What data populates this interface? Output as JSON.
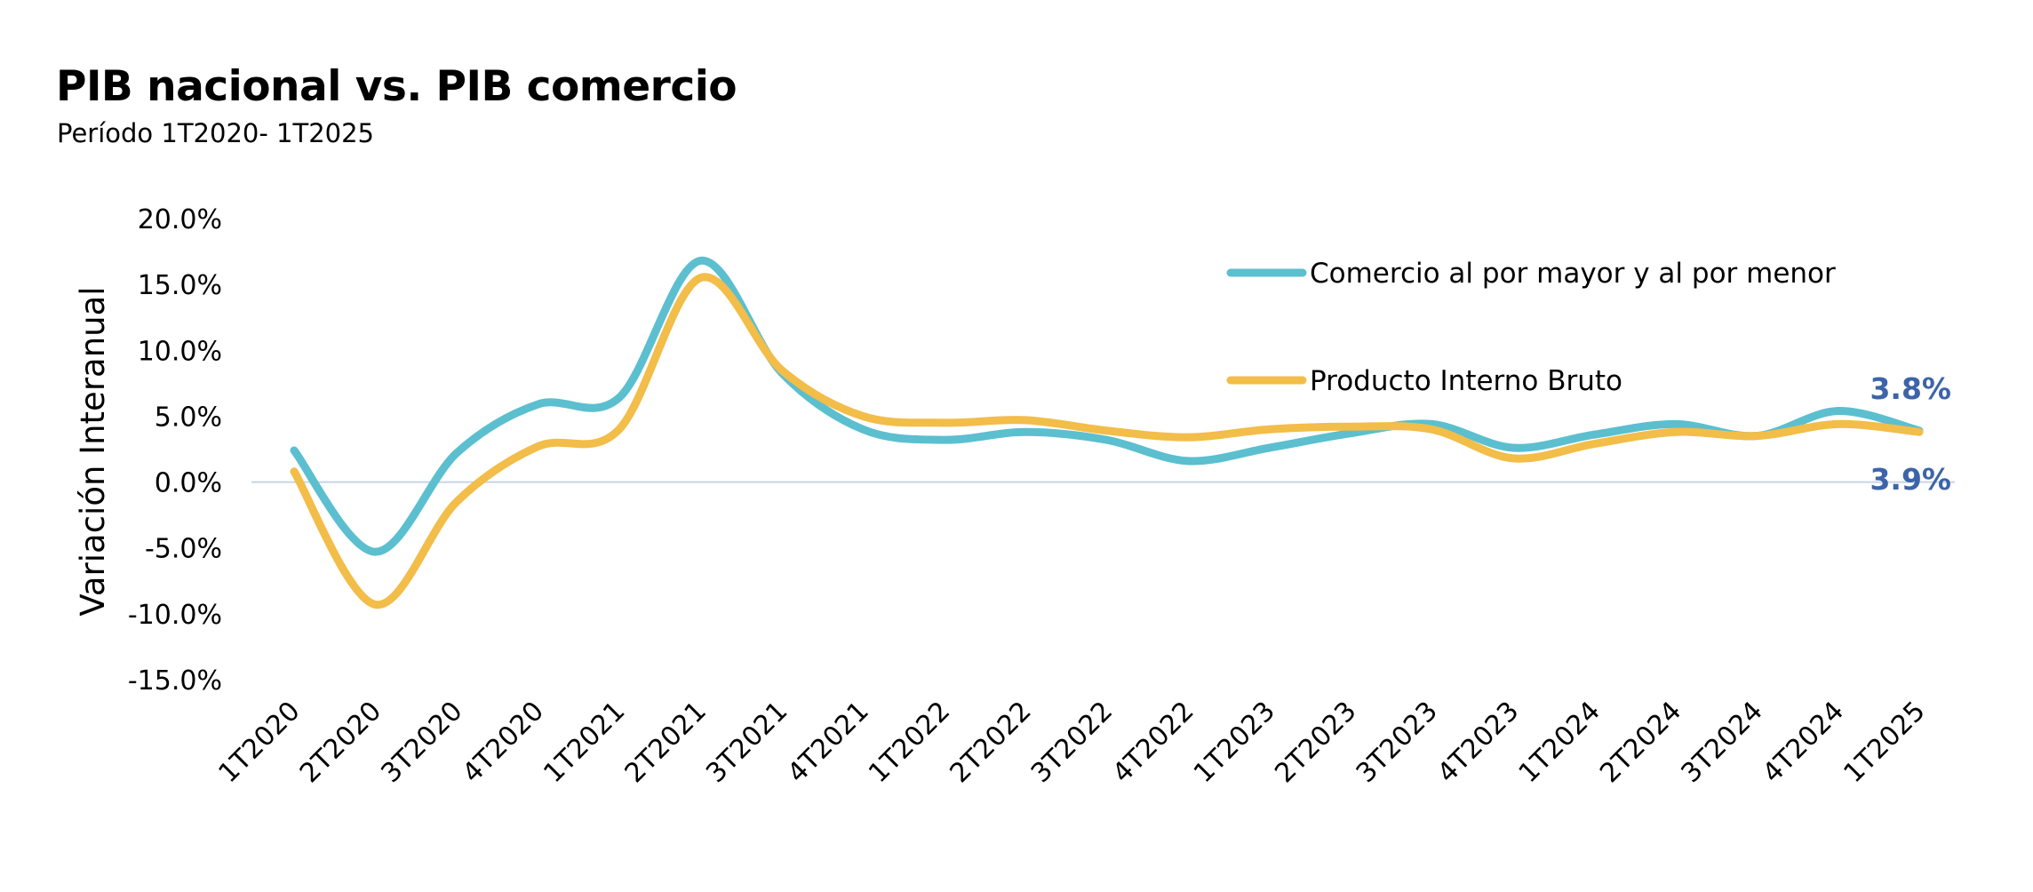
{
  "title": "PIB nacional vs. PIB comercio",
  "subtitle": "Período 1T2020- 1T2025",
  "colors": {
    "comercio": "#5bbfcf",
    "pib": "#f2bd48",
    "end_label": "#3d64a8",
    "zero_line": "#c8d4e8"
  },
  "chart_data": {
    "type": "line",
    "title": "PIB nacional vs. PIB comercio",
    "subtitle": "Período 1T2020- 1T2025",
    "xlabel": "",
    "ylabel": "Variación Interanual",
    "ylim": [
      -15,
      20
    ],
    "y_ticks": [
      "20.0%",
      "15.0%",
      "10.0%",
      "5.0%",
      "0.0%",
      "-5.0%",
      "-10.0%",
      "-15.0%"
    ],
    "y_tick_values": [
      20,
      15,
      10,
      5,
      0,
      -5,
      -10,
      -15
    ],
    "categories": [
      "1T2020",
      "2T2020",
      "3T2020",
      "4T2020",
      "1T2021",
      "2T2021",
      "3T2021",
      "4T2021",
      "1T2022",
      "2T2022",
      "3T2022",
      "4T2022",
      "1T2023",
      "2T2023",
      "3T2023",
      "4T2023",
      "1T2024",
      "2T2024",
      "3T2024",
      "4T2024",
      "1T2025"
    ],
    "grid": false,
    "legend_position": "top-right",
    "series": [
      {
        "name": "Comercio al por mayor y al por menor",
        "values": [
          2.4,
          -5.3,
          2.2,
          5.9,
          6.4,
          16.8,
          8.3,
          4.0,
          3.2,
          3.8,
          3.2,
          1.6,
          2.6,
          3.7,
          4.4,
          2.6,
          3.6,
          4.4,
          3.5,
          5.4,
          3.9
        ]
      },
      {
        "name": "Producto Interno Bruto",
        "values": [
          0.8,
          -9.3,
          -1.5,
          2.7,
          4.0,
          15.5,
          8.5,
          5.0,
          4.5,
          4.7,
          3.9,
          3.4,
          4.0,
          4.2,
          4.0,
          1.8,
          2.9,
          3.8,
          3.5,
          4.4,
          3.8
        ]
      }
    ],
    "end_labels": [
      "3.8%",
      "3.9%"
    ]
  }
}
